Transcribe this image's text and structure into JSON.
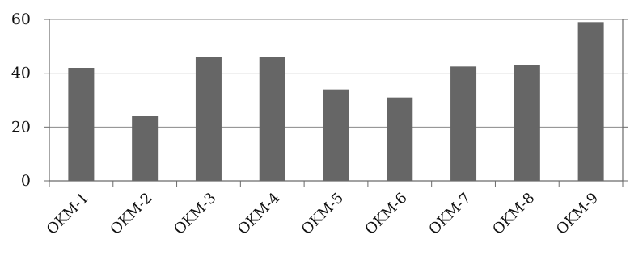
{
  "chart_data": {
    "type": "bar",
    "title": "",
    "xlabel": "",
    "ylabel": "",
    "categories": [
      "OKM-1",
      "OKM-2",
      "OKM-3",
      "OKM-4",
      "OKM-5",
      "OKM-6",
      "OKM-7",
      "OKM-8",
      "OKM-9"
    ],
    "values": [
      42,
      24,
      46,
      46,
      34,
      31,
      42.5,
      43,
      59
    ],
    "ylim": [
      0,
      60
    ],
    "yticks": [
      0,
      20,
      40,
      60
    ],
    "grid": "horizontal",
    "bar_color": "#666666"
  }
}
